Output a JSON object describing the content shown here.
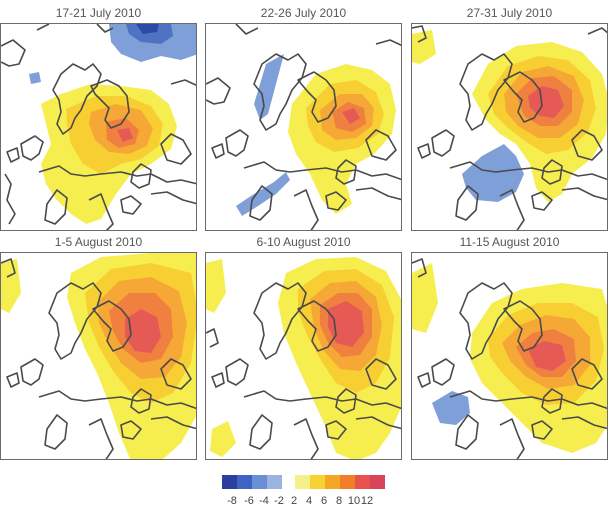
{
  "panels": [
    {
      "title": "17-21 July 2010"
    },
    {
      "title": "22-26 July 2010"
    },
    {
      "title": "27-31 July 2010"
    },
    {
      "title": "1-5 August 2010"
    },
    {
      "title": "6-10 August 2010"
    },
    {
      "title": "11-15 August 2010"
    }
  ],
  "legend": {
    "labels": [
      "-8",
      "-6",
      "-4",
      "-2",
      "2",
      "4",
      "6",
      "8",
      "10",
      "12"
    ],
    "colors": [
      "#2c3f9e",
      "#3f63c2",
      "#6b8fd4",
      "#9bb3df",
      "#f5f08a",
      "#f7d233",
      "#f5a623",
      "#f07e2a",
      "#e7524a",
      "#d94357"
    ]
  },
  "colors": {
    "land_outline": "#4a4a4a",
    "warm_1": "#f6ee4f",
    "warm_2": "#f8cf33",
    "warm_3": "#f6a837",
    "warm_4": "#ef8040",
    "warm_5": "#e65a55",
    "cool_1": "#7f9fd9",
    "cool_2": "#4f72c3",
    "cool_3": "#2b4aa6"
  }
}
